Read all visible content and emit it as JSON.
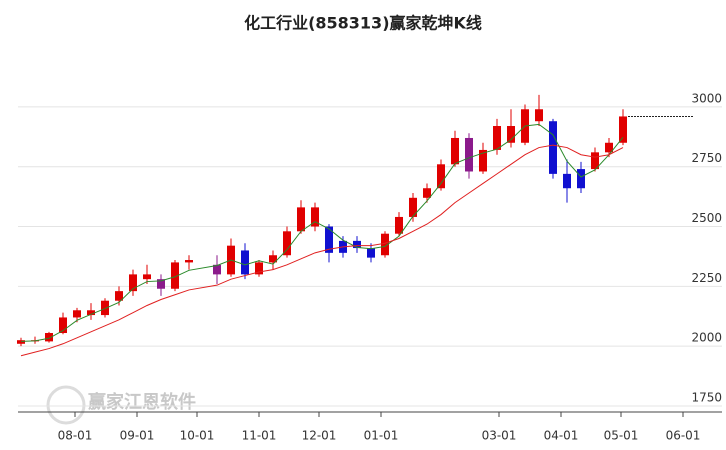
{
  "chart_data": {
    "type": "candlestick",
    "title": "化工行业(858313)赢家乾坤K线",
    "watermark": "赢家江恩软件",
    "x": [
      "07-05",
      "07-12",
      "07-19",
      "07-26",
      "08-02",
      "08-09",
      "08-16",
      "08-23",
      "08-30",
      "09-06",
      "09-13",
      "09-20",
      "09-27",
      "10-11",
      "10-18",
      "10-25",
      "11-01",
      "11-08",
      "11-15",
      "11-22",
      "11-29",
      "12-06",
      "12-13",
      "12-20",
      "12-27",
      "01-03",
      "01-10",
      "01-17",
      "01-24",
      "01-31",
      "02-07",
      "02-14",
      "02-21",
      "02-28",
      "03-07",
      "03-14",
      "03-21",
      "03-28",
      "04-04",
      "04-11",
      "04-18",
      "04-25",
      "05-02"
    ],
    "open": [
      2010,
      2025,
      2020,
      2055,
      2120,
      2150,
      2130,
      2190,
      2230,
      2300,
      2280,
      2240,
      2350,
      2340,
      2300,
      2400,
      2300,
      2350,
      2380,
      2480,
      2580,
      2500,
      2390,
      2440,
      2410,
      2380,
      2470,
      2540,
      2620,
      2660,
      2760,
      2870,
      2730,
      2820,
      2920,
      2850,
      2990,
      2940,
      2720,
      2660,
      2740,
      2810,
      2850
    ],
    "high": [
      2035,
      2040,
      2060,
      2140,
      2160,
      2180,
      2200,
      2250,
      2320,
      2340,
      2300,
      2360,
      2380,
      2380,
      2450,
      2430,
      2360,
      2400,
      2500,
      2610,
      2600,
      2510,
      2460,
      2460,
      2430,
      2480,
      2560,
      2640,
      2680,
      2780,
      2900,
      2890,
      2850,
      2950,
      2990,
      3010,
      3050,
      2950,
      2780,
      2770,
      2830,
      2870,
      2990
    ],
    "low": [
      2000,
      2010,
      2015,
      2050,
      2100,
      2110,
      2120,
      2170,
      2210,
      2260,
      2210,
      2230,
      2320,
      2260,
      2290,
      2280,
      2290,
      2320,
      2370,
      2470,
      2480,
      2350,
      2370,
      2390,
      2350,
      2370,
      2460,
      2520,
      2600,
      2650,
      2750,
      2700,
      2720,
      2800,
      2830,
      2840,
      2920,
      2700,
      2600,
      2640,
      2730,
      2790,
      2840
    ],
    "close": [
      2025,
      2020,
      2055,
      2120,
      2150,
      2130,
      2190,
      2230,
      2300,
      2280,
      2240,
      2350,
      2360,
      2300,
      2420,
      2300,
      2350,
      2380,
      2480,
      2580,
      2500,
      2390,
      2440,
      2410,
      2370,
      2470,
      2540,
      2620,
      2660,
      2760,
      2870,
      2730,
      2820,
      2920,
      2850,
      2990,
      2940,
      2720,
      2660,
      2740,
      2810,
      2850,
      2960
    ],
    "colors": [
      "#e00000",
      "#e00000",
      "#e00000",
      "#e00000",
      "#e00000",
      "#e00000",
      "#e00000",
      "#e00000",
      "#e00000",
      "#e00000",
      "#8b1a8b",
      "#e00000",
      "#e00000",
      "#8b1a8b",
      "#e00000",
      "#1010d0",
      "#e00000",
      "#e00000",
      "#e00000",
      "#e00000",
      "#e00000",
      "#1010d0",
      "#1010d0",
      "#1010d0",
      "#1010d0",
      "#e00000",
      "#e00000",
      "#e00000",
      "#e00000",
      "#e00000",
      "#e00000",
      "#8b1a8b",
      "#e00000",
      "#e00000",
      "#e00000",
      "#e00000",
      "#e00000",
      "#1010d0",
      "#1010d0",
      "#1010d0",
      "#e00000",
      "#e00000",
      "#e00000"
    ],
    "lines": [
      {
        "color": "#2a8a2a",
        "values": [
          2020,
          2022,
          2033,
          2065,
          2108,
          2133,
          2157,
          2183,
          2240,
          2270,
          2273,
          2290,
          2317,
          2337,
          2360,
          2340,
          2357,
          2343,
          2403,
          2480,
          2520,
          2490,
          2443,
          2413,
          2407,
          2417,
          2460,
          2543,
          2607,
          2680,
          2763,
          2787,
          2807,
          2823,
          2863,
          2920,
          2927,
          2883,
          2773,
          2707,
          2737,
          2800,
          2873
        ]
      },
      {
        "color": "#e02020",
        "values": [
          1960,
          1975,
          1990,
          2010,
          2035,
          2060,
          2085,
          2110,
          2140,
          2170,
          2195,
          2215,
          2235,
          2255,
          2280,
          2295,
          2310,
          2320,
          2340,
          2365,
          2390,
          2405,
          2415,
          2420,
          2420,
          2430,
          2450,
          2480,
          2510,
          2550,
          2600,
          2640,
          2680,
          2720,
          2760,
          2800,
          2830,
          2840,
          2830,
          2800,
          2790,
          2800,
          2830
        ]
      }
    ],
    "ylim": [
      1750,
      3050
    ],
    "yticks": [
      1750,
      2000,
      2250,
      2500,
      2750,
      3000
    ],
    "xticks": [
      "08-01",
      "09-01",
      "10-01",
      "11-01",
      "12-01",
      "01-01",
      "03-01",
      "04-01",
      "05-01",
      "06-01"
    ],
    "grid": true
  }
}
